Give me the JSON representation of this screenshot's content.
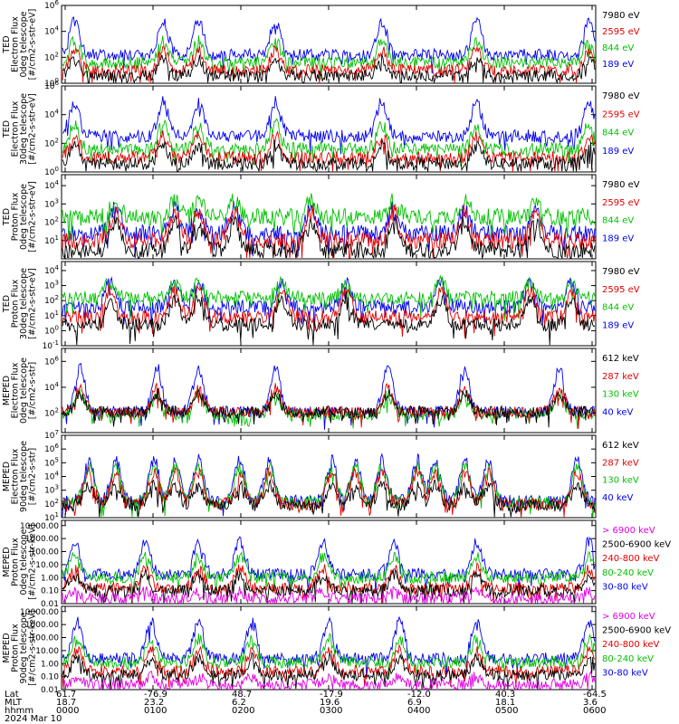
{
  "chart_data": [
    {
      "type": "line",
      "scale": "log",
      "ylabel": [
        "TED",
        "Electron Flux",
        "0deg telescope",
        "[#/cm2-s-str-eV]"
      ],
      "yticks": [
        {
          "exp": 0,
          "label": "10^0"
        },
        {
          "exp": 2,
          "label": "10^2"
        },
        {
          "exp": 4,
          "label": "10^4"
        },
        {
          "exp": 6,
          "label": "10^6"
        }
      ],
      "ylim_exp": [
        0,
        6
      ],
      "legend": [
        {
          "name": "7980 eV",
          "color": "#000000",
          "base": 0.6,
          "amp": 1.2
        },
        {
          "name": "2595 eV",
          "color": "#e00000",
          "base": 1.0,
          "amp": 1.5
        },
        {
          "name": "844 eV",
          "color": "#00c000",
          "base": 1.6,
          "amp": 1.7
        },
        {
          "name": "189 eV",
          "color": "#0000ee",
          "base": 2.2,
          "amp": 2.6
        }
      ],
      "peaks": [
        0.2,
        1.7,
        2.3,
        3.6,
        5.4,
        7.0,
        8.9
      ]
    },
    {
      "type": "line",
      "scale": "log",
      "ylabel": [
        "TED",
        "Electron Flux",
        "30deg telescope",
        "[#/cm2-s-str-eV]"
      ],
      "yticks": [
        {
          "exp": 0,
          "label": "10^0"
        },
        {
          "exp": 2,
          "label": "10^2"
        },
        {
          "exp": 4,
          "label": "10^4"
        },
        {
          "exp": 6,
          "label": "10^6"
        }
      ],
      "ylim_exp": [
        0,
        6
      ],
      "legend": [
        {
          "name": "7980 eV",
          "color": "#000000",
          "base": 0.6,
          "amp": 1.2
        },
        {
          "name": "2595 eV",
          "color": "#e00000",
          "base": 1.0,
          "amp": 1.5
        },
        {
          "name": "844 eV",
          "color": "#00c000",
          "base": 1.6,
          "amp": 1.7
        },
        {
          "name": "189 eV",
          "color": "#0000ee",
          "base": 2.5,
          "amp": 2.4
        }
      ],
      "peaks": [
        0.2,
        1.7,
        2.3,
        3.6,
        5.4,
        7.0,
        8.9
      ]
    },
    {
      "type": "line",
      "scale": "log",
      "ylabel": [
        "TED",
        "Proton Flux",
        "0deg telescope",
        "[#/cm2-s-str-eV]"
      ],
      "yticks": [
        {
          "exp": 1,
          "label": "10^1"
        },
        {
          "exp": 2,
          "label": "10^2"
        },
        {
          "exp": 3,
          "label": "10^3"
        },
        {
          "exp": 4,
          "label": "10^4"
        }
      ],
      "ylim_exp": [
        0,
        4.6
      ],
      "legend": [
        {
          "name": "7980 eV",
          "color": "#000000",
          "base": 0.5,
          "amp": 1.5
        },
        {
          "name": "2595 eV",
          "color": "#e00000",
          "base": 1.0,
          "amp": 1.6
        },
        {
          "name": "844 eV",
          "color": "#00c000",
          "base": 2.3,
          "amp": 0.9
        },
        {
          "name": "189 eV",
          "color": "#0000ee",
          "base": 1.4,
          "amp": 1.4
        }
      ],
      "peaks": [
        0.9,
        1.9,
        2.3,
        2.9,
        4.2,
        5.6,
        6.8,
        8.0
      ]
    },
    {
      "type": "line",
      "scale": "log",
      "ylabel": [
        "TED",
        "Proton Flux",
        "30deg telescope",
        "[#/cm2-s-str-eV]"
      ],
      "yticks": [
        {
          "exp": -1,
          "label": "10^-1"
        },
        {
          "exp": 0,
          "label": "10^0"
        },
        {
          "exp": 1,
          "label": "10^1"
        },
        {
          "exp": 2,
          "label": "10^2"
        },
        {
          "exp": 3,
          "label": "10^3"
        },
        {
          "exp": 4,
          "label": "10^4"
        }
      ],
      "ylim_exp": [
        -1,
        4.6
      ],
      "legend": [
        {
          "name": "7980 eV",
          "color": "#000000",
          "base": 0.4,
          "amp": 1.8
        },
        {
          "name": "2595 eV",
          "color": "#e00000",
          "base": 0.9,
          "amp": 1.8
        },
        {
          "name": "844 eV",
          "color": "#00c000",
          "base": 2.2,
          "amp": 1.0
        },
        {
          "name": "189 eV",
          "color": "#0000ee",
          "base": 1.6,
          "amp": 1.6
        }
      ],
      "peaks": [
        0.8,
        1.9,
        2.3,
        3.7,
        4.8,
        6.4,
        7.9,
        8.6
      ]
    },
    {
      "type": "line",
      "scale": "log",
      "ylabel": [
        "MEPED",
        "Electron Flux",
        "0deg telescope",
        "[#/cm2-s-str]"
      ],
      "yticks": [
        {
          "exp": 2,
          "label": "10^2"
        },
        {
          "exp": 4,
          "label": "10^4"
        },
        {
          "exp": 6,
          "label": "10^6"
        }
      ],
      "ylim_exp": [
        0.5,
        7
      ],
      "legend": [
        {
          "name": "612 keV",
          "color": "#000000",
          "base": 2.1,
          "amp": 1.4
        },
        {
          "name": "287 keV",
          "color": "#e00000",
          "base": 2.1,
          "amp": 1.8
        },
        {
          "name": "130 keV",
          "color": "#00c000",
          "base": 1.9,
          "amp": 1.5
        },
        {
          "name": "40 keV",
          "color": "#0000ee",
          "base": 2.1,
          "amp": 3.4
        }
      ],
      "peaks": [
        0.3,
        1.6,
        2.3,
        3.6,
        5.5,
        6.8,
        8.4
      ]
    },
    {
      "type": "line",
      "scale": "log",
      "ylabel": [
        "MEPED",
        "Electron Flux",
        "90deg telescope",
        "[#/cm2-s-str]"
      ],
      "yticks": [
        {
          "exp": 1,
          "label": "10^1"
        },
        {
          "exp": 2,
          "label": "10^2"
        },
        {
          "exp": 3,
          "label": "10^3"
        },
        {
          "exp": 4,
          "label": "10^4"
        },
        {
          "exp": 5,
          "label": "10^5"
        },
        {
          "exp": 6,
          "label": "10^6"
        },
        {
          "exp": 7,
          "label": "10^7"
        }
      ],
      "ylim_exp": [
        1,
        7
      ],
      "legend": [
        {
          "name": "612 keV",
          "color": "#000000",
          "base": 1.9,
          "amp": 1.4
        },
        {
          "name": "287 keV",
          "color": "#e00000",
          "base": 2.0,
          "amp": 2.3
        },
        {
          "name": "130 keV",
          "color": "#00c000",
          "base": 2.1,
          "amp": 2.6
        },
        {
          "name": "40 keV",
          "color": "#0000ee",
          "base": 2.2,
          "amp": 3.0
        }
      ],
      "peaks": [
        0.45,
        0.9,
        1.55,
        1.9,
        2.3,
        3.0,
        3.5,
        4.55,
        4.95,
        5.4,
        6.0,
        6.3,
        6.8,
        7.2,
        8.7
      ]
    },
    {
      "type": "line",
      "scale": "log",
      "ylabel": [
        "MEPED",
        "Proton Flux",
        "0deg telescope",
        "[#/cm2-s-str-keV]"
      ],
      "yticks": [
        {
          "exp": -2,
          "label": "0.01"
        },
        {
          "exp": -1,
          "label": "0.10"
        },
        {
          "exp": 0,
          "label": "1.00"
        },
        {
          "exp": 1,
          "label": "10.00"
        },
        {
          "exp": 2,
          "label": "100.00"
        },
        {
          "exp": 3,
          "label": "1000.00"
        },
        {
          "exp": 4,
          "label": "10000.00"
        }
      ],
      "ylim_exp": [
        -2,
        4.4
      ],
      "legend": [
        {
          "name": "> 6900 keV",
          "color": "#e000e0",
          "base": -1.6,
          "amp": 0.5
        },
        {
          "name": "2500-6900 keV",
          "color": "#000000",
          "base": -1.0,
          "amp": 1.2
        },
        {
          "name": "240-800 keV",
          "color": "#e00000",
          "base": -0.8,
          "amp": 1.5
        },
        {
          "name": "80-240 keV",
          "color": "#00c000",
          "base": 0.0,
          "amp": 1.6
        },
        {
          "name": "30-80 keV",
          "color": "#0000ee",
          "base": 0.25,
          "amp": 2.5
        }
      ],
      "peaks": [
        0.2,
        1.4,
        2.3,
        3.0,
        4.4,
        5.6,
        7.0,
        8.9
      ]
    },
    {
      "type": "line",
      "scale": "log",
      "ylabel": [
        "MEPED",
        "Proton Flux",
        "90deg telescope",
        "[#/cm2-s-str-keV]"
      ],
      "yticks": [
        {
          "exp": -2,
          "label": "0.01"
        },
        {
          "exp": -1,
          "label": "0.10"
        },
        {
          "exp": 0,
          "label": "1.00"
        },
        {
          "exp": 1,
          "label": "10.00"
        },
        {
          "exp": 2,
          "label": "100.00"
        },
        {
          "exp": 3,
          "label": "1000.00"
        },
        {
          "exp": 4,
          "label": "10000.00"
        }
      ],
      "ylim_exp": [
        -2,
        4.4
      ],
      "legend": [
        {
          "name": "> 6900 keV",
          "color": "#e000e0",
          "base": -1.6,
          "amp": 0.6
        },
        {
          "name": "2500-6900 keV",
          "color": "#000000",
          "base": -0.9,
          "amp": 1.3
        },
        {
          "name": "240-800 keV",
          "color": "#e00000",
          "base": -0.6,
          "amp": 1.6
        },
        {
          "name": "80-240 keV",
          "color": "#00c000",
          "base": 0.1,
          "amp": 1.8
        },
        {
          "name": "30-80 keV",
          "color": "#0000ee",
          "base": 0.4,
          "amp": 2.8
        }
      ],
      "peaks": [
        0.25,
        1.5,
        2.3,
        3.2,
        4.5,
        5.7,
        7.0,
        8.9
      ]
    }
  ],
  "x_axis": {
    "row_labels": [
      "Lat",
      "MLT",
      "hhmm",
      "2024 Mar 10"
    ],
    "columns": [
      {
        "lat": "61.7",
        "mlt": "18.7",
        "hhmm": "0000"
      },
      {
        "lat": "-76.9",
        "mlt": "23.2",
        "hhmm": "0100"
      },
      {
        "lat": "48.7",
        "mlt": "6.2",
        "hhmm": "0200"
      },
      {
        "lat": "-17.9",
        "mlt": "19.6",
        "hhmm": "0300"
      },
      {
        "lat": "-12.0",
        "mlt": "6.9",
        "hhmm": "0400"
      },
      {
        "lat": "40.3",
        "mlt": "18.1",
        "hhmm": "0500"
      },
      {
        "lat": "-64.5",
        "mlt": "3.6",
        "hhmm": "0600"
      }
    ]
  }
}
